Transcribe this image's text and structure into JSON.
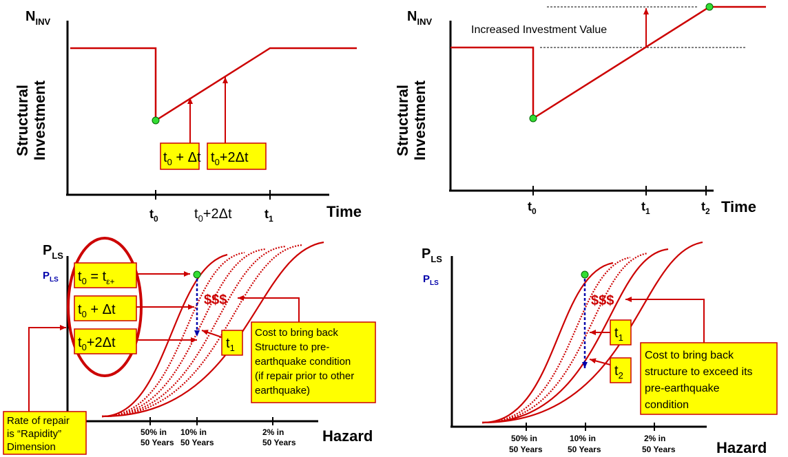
{
  "colors": {
    "curve": "#cc0000",
    "box_fill": "#ffff00",
    "box_stroke": "#cc0000",
    "dot": "#33dd33",
    "blue": "#0000aa"
  },
  "top_left": {
    "y_axis_label": "N",
    "y_axis_sub": "INV",
    "rot_label_1": "Structural",
    "rot_label_2": "Investment",
    "x_axis_label": "Time",
    "tick_t0": "t",
    "tick_t0_sub": "0",
    "tick_t0_2dt": "t",
    "tick_t0_2dt_sub": "0",
    "tick_t0_2dt_rest": "+2Δt",
    "tick_t1": "t",
    "tick_t1_sub": "1",
    "box1": "t",
    "box1_sub": "0",
    "box1_rest": " + Δt",
    "box2": "t",
    "box2_sub": "0",
    "box2_rest": "+2Δt"
  },
  "top_right": {
    "y_axis_label": "N",
    "y_axis_sub": "INV",
    "rot_label_1": "Structural",
    "rot_label_2": "Investment",
    "x_axis_label": "Time",
    "annotation": "Increased Investment Value",
    "tick_t0": "t",
    "tick_t0_sub": "0",
    "tick_t1": "t",
    "tick_t1_sub": "1",
    "tick_t2": "t",
    "tick_t2_sub": "2"
  },
  "bottom_left": {
    "y_axis_label": "P",
    "y_axis_sub": "LS",
    "y_sub_label": "P",
    "y_sub_label_sub": "LS",
    "x_axis_label": "Hazard",
    "dollar": "$$$",
    "box_a": "t",
    "box_a_sub": "0",
    "box_a_rest": " = t",
    "box_a_sub2": "ε+",
    "box_b": "t",
    "box_b_sub": "0",
    "box_b_rest": " + Δt",
    "box_c": "t",
    "box_c_sub": "0",
    "box_c_rest": "+2Δt",
    "box_t1": "t",
    "box_t1_sub": "1",
    "cost_note": [
      "Cost to bring back",
      "Structure to pre-",
      "earthquake condition",
      "(if repair prior to other",
      "earthquake)"
    ],
    "rate_note": [
      "Rate of repair",
      "is “Rapidity”",
      "Dimension"
    ],
    "ticks": [
      [
        "50% in",
        "50 Years"
      ],
      [
        "10% in",
        "50 Years"
      ],
      [
        "2% in",
        "50 Years"
      ]
    ]
  },
  "bottom_right": {
    "y_axis_label": "P",
    "y_axis_sub": "LS",
    "y_sub_label": "P",
    "y_sub_label_sub": "LS",
    "x_axis_label": "Hazard",
    "dollar": "$$$",
    "box_t1": "t",
    "box_t1_sub": "1",
    "box_t2": "t",
    "box_t2_sub": "2",
    "cost_note": [
      "Cost to bring back",
      "structure to exceed its",
      "pre-earthquake",
      "condition"
    ],
    "ticks": [
      [
        "50% in",
        "50 Years"
      ],
      [
        "10% in",
        "50 Years"
      ],
      [
        "2% in",
        "50 Years"
      ]
    ]
  }
}
